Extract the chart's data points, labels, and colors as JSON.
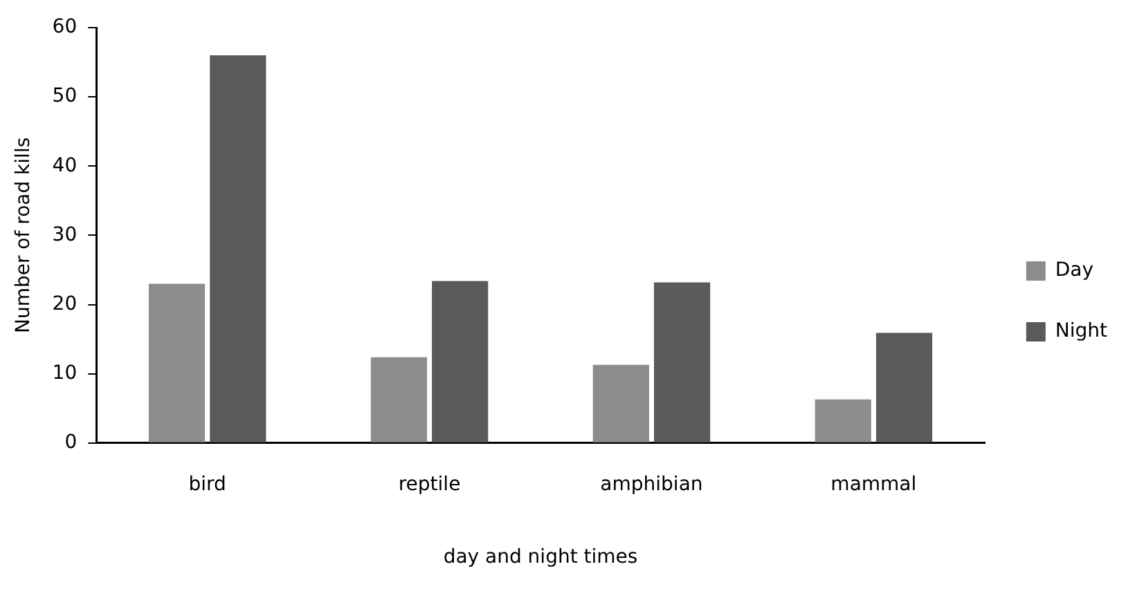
{
  "chart_data": {
    "type": "bar",
    "xlabel": "day and night times",
    "ylabel": "Number of road kills",
    "categories": [
      "bird",
      "reptile",
      "amphibian",
      "mammal"
    ],
    "series": [
      {
        "name": "Day",
        "color": "#8c8c8c",
        "values": [
          23,
          12.4,
          11.3,
          6.3
        ]
      },
      {
        "name": "Night",
        "color": "#5a5a5a",
        "values": [
          56,
          23.4,
          23.2,
          15.9
        ]
      }
    ],
    "ylim": [
      0,
      60
    ],
    "yticks": [
      0,
      10,
      20,
      30,
      40,
      50,
      60
    ],
    "grid": false,
    "legend": "right"
  }
}
